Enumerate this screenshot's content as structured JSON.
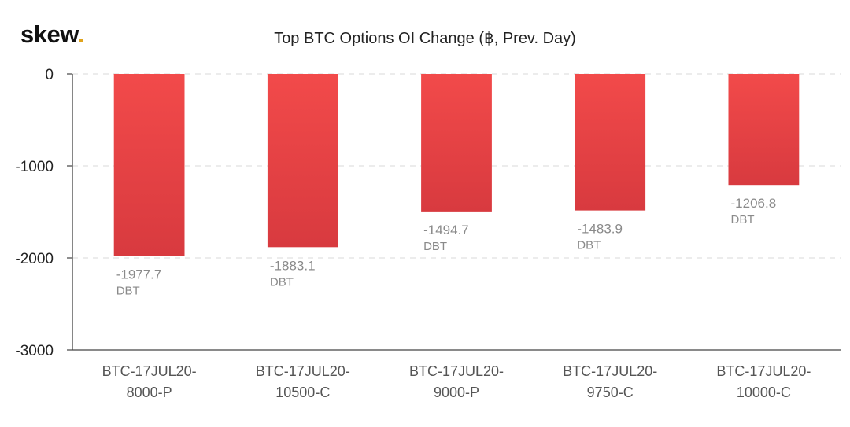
{
  "brand": {
    "name": "skew",
    "dot": "."
  },
  "chart_data": {
    "type": "bar",
    "title": "Top BTC Options OI Change (฿, Prev. Day)",
    "xlabel": "",
    "ylabel": "",
    "categories": [
      [
        "BTC-17JUL20-",
        "8000-P"
      ],
      [
        "BTC-17JUL20-",
        "10500-C"
      ],
      [
        "BTC-17JUL20-",
        "9000-P"
      ],
      [
        "BTC-17JUL20-",
        "9750-C"
      ],
      [
        "BTC-17JUL20-",
        "10000-C"
      ]
    ],
    "values": [
      -1977.7,
      -1883.1,
      -1494.7,
      -1483.9,
      -1206.8
    ],
    "value_labels": [
      "-1977.7",
      "-1883.1",
      "-1494.7",
      "-1483.9",
      "-1206.8"
    ],
    "value_unit": "DBT",
    "ylim": [
      -3000,
      0
    ],
    "yticks": [
      0,
      -1000,
      -2000,
      -3000
    ],
    "ytick_labels": [
      "0",
      "-1000",
      "-2000",
      "-3000"
    ],
    "grid": true,
    "colors": {
      "bar_top": "#f24a4a",
      "bar_bottom": "#d83a3f",
      "grid": "#d9d9d9"
    }
  }
}
